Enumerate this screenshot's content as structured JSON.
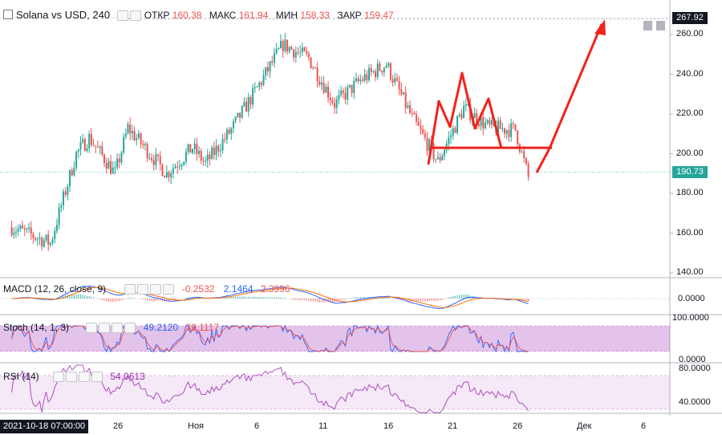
{
  "header": {
    "symbol": "Solana vs USD, 240",
    "open_label": "ОТКР",
    "open": "160.38",
    "high_label": "МАКС",
    "high": "161.94",
    "low_label": "МИН",
    "low": "158.33",
    "close_label": "ЗАКР",
    "close": "159.47"
  },
  "price_axis": {
    "ticks": [
      "260.00",
      "240.00",
      "220.00",
      "200.00",
      "180.00",
      "160.00",
      "140.00"
    ],
    "tick_values": [
      260,
      240,
      220,
      200,
      180,
      160,
      140
    ],
    "high_tag": "267.92",
    "high_tag_value": 267.92,
    "last_tag": "190.73",
    "last_tag_value": 190.73
  },
  "macd": {
    "label": "MACD (12, 26, close, 9)",
    "v1": "-0.2532",
    "v2": "2.1464",
    "v3": "2.3996",
    "tick": "0.0000"
  },
  "stoch": {
    "label": "Stoch (14, 1, 3)",
    "v1": "49.2120",
    "v2": "39.1117",
    "ticks": [
      "100.0000",
      "0.0000"
    ]
  },
  "rsi": {
    "label": "RSI (14)",
    "v1": "54.0613",
    "ticks": [
      "80.0000",
      "40.0000"
    ]
  },
  "time_axis": {
    "cursor_date": "2021-10-18 07:00:00",
    "ticks": [
      "26",
      "Ноя",
      "6",
      "11",
      "16",
      "21",
      "26",
      "Дек",
      "6"
    ]
  },
  "colors": {
    "up": "#26a69a",
    "down": "#ef5350",
    "drawing": "#f0231c",
    "macd": "#2962ff",
    "signal": "#ff6d00",
    "osc": "#9c27b0"
  },
  "chart_data": {
    "type": "candlestick",
    "title": "Solana vs USD, 240",
    "ylim": [
      140,
      270
    ],
    "x_range_days": [
      "2021-10-18",
      "2021-12-09"
    ],
    "price_path_keypoints": [
      [
        "2021-10-18",
        163
      ],
      [
        "2021-10-21",
        155
      ],
      [
        "2021-10-23",
        200
      ],
      [
        "2021-10-24",
        208
      ],
      [
        "2021-10-26",
        190
      ],
      [
        "2021-10-27",
        213
      ],
      [
        "2021-10-30",
        190
      ],
      [
        "2021-11-01",
        203
      ],
      [
        "2021-11-02",
        195
      ],
      [
        "2021-11-04",
        212
      ],
      [
        "2021-11-06",
        233
      ],
      [
        "2021-11-08",
        255
      ],
      [
        "2021-11-10",
        248
      ],
      [
        "2021-11-12",
        225
      ],
      [
        "2021-11-14",
        237
      ],
      [
        "2021-11-16",
        245
      ],
      [
        "2021-11-18",
        218
      ],
      [
        "2021-11-20",
        196
      ],
      [
        "2021-11-22",
        223
      ],
      [
        "2021-11-24",
        213
      ],
      [
        "2021-11-26",
        212
      ],
      [
        "2021-11-27",
        188
      ]
    ],
    "annotations": {
      "neckline": 203,
      "head_and_shoulders": [
        "2021-11-20",
        "2021-11-21",
        "2021-11-22",
        "2021-11-23",
        "2021-11-24",
        "2021-11-25",
        "2021-11-26"
      ],
      "target_arrow": [
        "2021-11-28",
        267.92
      ]
    }
  }
}
